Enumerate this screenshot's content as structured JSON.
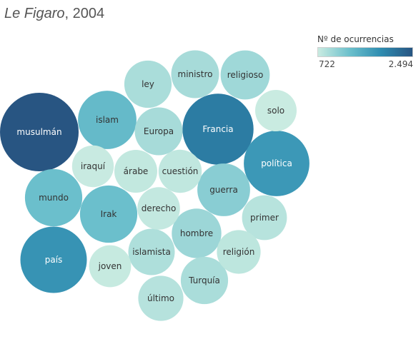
{
  "title": {
    "italic": "Le Figaro",
    "rest": ", 2004"
  },
  "legend": {
    "title": "Nº de ocurrencias",
    "min_label": "722",
    "max_label": "2.494"
  },
  "colors": {
    "low": "#c9ebe1",
    "mid": "#6cc0cc",
    "mid2": "#2e8cb0",
    "high": "#285582"
  },
  "chart_data": {
    "type": "bubble",
    "title": "Le Figaro, 2004",
    "size_and_color_measure": "Nº de ocurrencias",
    "range": [
      722,
      2494
    ],
    "items": [
      {
        "word": "musulmán",
        "value": 2494
      },
      {
        "word": "Francia",
        "value": 2050
      },
      {
        "word": "país",
        "value": 1800
      },
      {
        "word": "política",
        "value": 1750
      },
      {
        "word": "islam",
        "value": 1400
      },
      {
        "word": "Irak",
        "value": 1350
      },
      {
        "word": "mundo",
        "value": 1350
      },
      {
        "word": "guerra",
        "value": 1150
      },
      {
        "word": "hombre",
        "value": 1020
      },
      {
        "word": "religioso",
        "value": 1000
      },
      {
        "word": "ministro",
        "value": 950
      },
      {
        "word": "Europa",
        "value": 950
      },
      {
        "word": "Turquía",
        "value": 930
      },
      {
        "word": "ley",
        "value": 930
      },
      {
        "word": "islamista",
        "value": 900
      },
      {
        "word": "primer",
        "value": 840
      },
      {
        "word": "último",
        "value": 850
      },
      {
        "word": "religión",
        "value": 800
      },
      {
        "word": "cuestión",
        "value": 780
      },
      {
        "word": "árabe",
        "value": 770
      },
      {
        "word": "derecho",
        "value": 760
      },
      {
        "word": "joven",
        "value": 740
      },
      {
        "word": "iraquí",
        "value": 730
      },
      {
        "word": "solo",
        "value": 722
      }
    ]
  }
}
